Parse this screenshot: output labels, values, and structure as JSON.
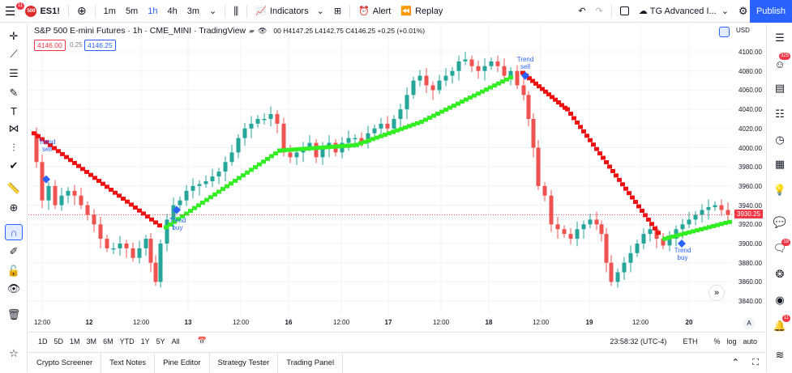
{
  "topbar": {
    "notif_count": "11",
    "symbol": "ES1!",
    "badge_text": "500",
    "intervals": [
      "1m",
      "5m",
      "1h",
      "4h",
      "3m"
    ],
    "active_interval": "1h",
    "indicators_label": "Indicators",
    "alert_label": "Alert",
    "replay_label": "Replay",
    "layout_name": "TG Advanced I...",
    "publish_label": "Publish"
  },
  "legend": {
    "title": "S&P 500 E-mini Futures · 1h · CME_MINI · TradingView",
    "ohlc": "00 H4147.25 L4142.75 C4146.25 +0.25 (+0.01%)",
    "sell_price": "4146.00",
    "spread": "0.25",
    "buy_price": "4146.25"
  },
  "price_axis": {
    "currency": "USD",
    "labels": [
      "4100.00",
      "4080.00",
      "4060.00",
      "4040.00",
      "4020.00",
      "4000.00",
      "3980.00",
      "3960.00",
      "3940.00",
      "3920.00",
      "3900.00",
      "3880.00",
      "3860.00",
      "3840.00"
    ],
    "current_price": "3930.25"
  },
  "time_axis": {
    "labels": [
      "12:00",
      "12",
      "12:00",
      "13",
      "12:00",
      "16",
      "12:00",
      "17",
      "12:00",
      "18",
      "12:00",
      "19",
      "12:00",
      "20"
    ],
    "auto_a": "A"
  },
  "annotations": [
    {
      "text": "Trend sell",
      "kind": "sell"
    },
    {
      "text": "Trend buy",
      "kind": "buy"
    },
    {
      "text": "Trend sell",
      "kind": "sell"
    },
    {
      "text": "Trend buy",
      "kind": "buy"
    }
  ],
  "timebar": {
    "ranges": [
      "1D",
      "5D",
      "1M",
      "3M",
      "6M",
      "YTD",
      "1Y",
      "5Y",
      "All"
    ],
    "clock": "23:58:32 (UTC-4)",
    "session": "ETH",
    "percent": "%",
    "log": "log",
    "auto": "auto"
  },
  "bottom_tabs": [
    "Crypto Screener",
    "Text Notes",
    "Pine Editor",
    "Strategy Tester",
    "Trading Panel"
  ],
  "right_badges": {
    "ideas": "325",
    "chats": "18",
    "alerts": "11"
  },
  "colors": {
    "up": "#26a69a",
    "down": "#ef5350",
    "buy_trail": "#33ee22",
    "sell_trail": "#ee1111",
    "accent": "#2962ff"
  }
}
